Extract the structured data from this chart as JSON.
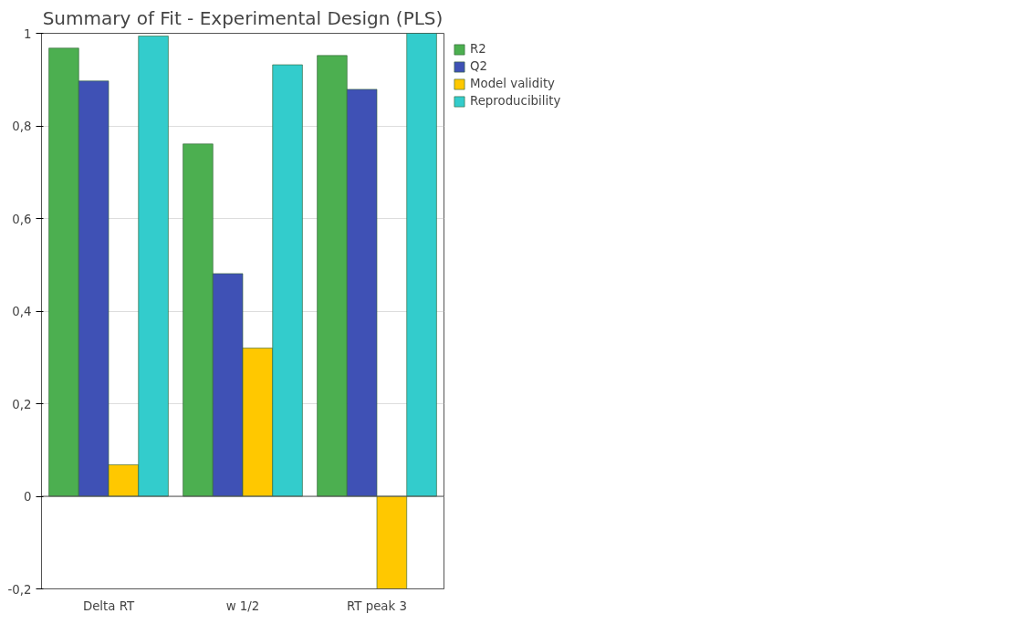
{
  "chart_data": {
    "type": "bar",
    "title": "Summary of Fit - Experimental Design (PLS)",
    "categories": [
      "Delta RT",
      "w 1/2",
      "RT peak 3"
    ],
    "series": [
      {
        "name": "R2",
        "color": "#4caf50",
        "values": [
          0.968,
          0.761,
          0.952
        ]
      },
      {
        "name": "Q2",
        "color": "#3f51b5",
        "values": [
          0.897,
          0.481,
          0.879
        ]
      },
      {
        "name": "Model validity",
        "color": "#ffc800",
        "values": [
          0.068,
          0.32,
          -0.2
        ]
      },
      {
        "name": "Reproducibility",
        "color": "#33cccc",
        "values": [
          0.994,
          0.932,
          1.0
        ]
      }
    ],
    "ylim": [
      -0.2,
      1
    ],
    "yticks": [
      {
        "value": -0.2,
        "label": "-0,2"
      },
      0,
      {
        "value": 0.2,
        "label": "0,2"
      },
      {
        "value": 0.4,
        "label": "0,4"
      },
      {
        "value": 0.6,
        "label": "0,6"
      },
      {
        "value": 0.8,
        "label": "0,8"
      },
      1
    ],
    "grid": "y",
    "legend": "top right"
  }
}
